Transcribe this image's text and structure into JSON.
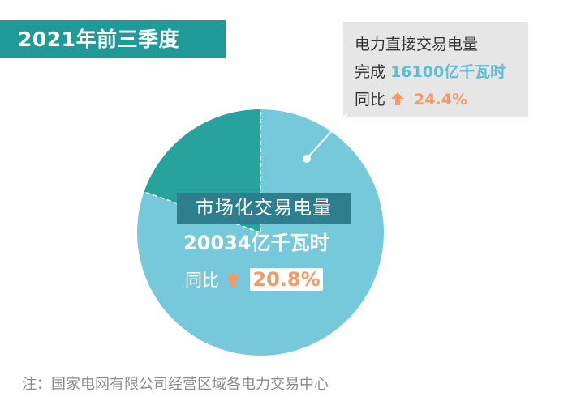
{
  "title": "2021年前三季度",
  "callout": {
    "line1": "电力直接交易电量",
    "line2_prefix": "完成",
    "line2_value": "16100亿千瓦时",
    "line3_prefix": "同比",
    "line3_value": "24.4%"
  },
  "market": {
    "label": "市场化交易电量",
    "value": "20034亿千瓦时",
    "yoy_prefix": "同比",
    "yoy_value": "20.8%"
  },
  "source_note": "注：国家电网有限公司经营区域各电力交易中心",
  "colors": {
    "title_bg": "#1f9a98",
    "pie_main": "#76c9da",
    "pie_small": "#27a39d",
    "label_bg": "#2e7f8e",
    "accent_orange": "#f29a68",
    "accent_blue": "#5dbdd3"
  },
  "chart_data": {
    "type": "pie",
    "slices": [
      {
        "name": "电力直接交易电量",
        "value": 16100
      },
      {
        "name": "",
        "value": 3934
      }
    ],
    "total": 20034,
    "units": "亿千瓦时"
  }
}
